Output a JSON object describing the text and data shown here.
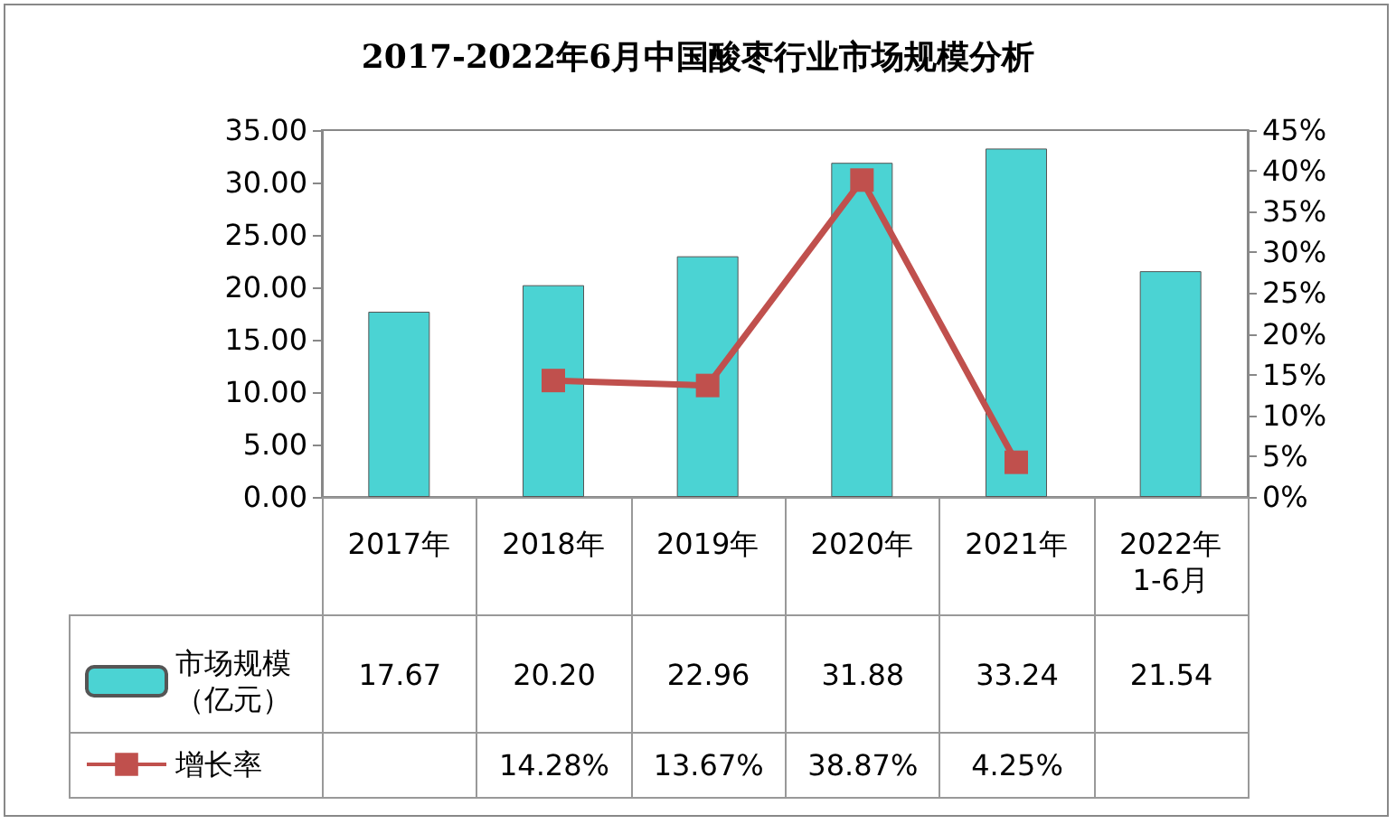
{
  "chart_data": {
    "type": "bar",
    "title": "2017-2022年6月中国酸枣行业市场规模分析",
    "categories": [
      "2017年",
      "2018年",
      "2019年",
      "2020年",
      "2021年",
      "2022年1-6月"
    ],
    "ylim": [
      0,
      35
    ],
    "yticks": [
      {
        "value": 0,
        "label": "0.00"
      },
      {
        "value": 5,
        "label": "5.00"
      },
      {
        "value": 10,
        "label": "10.00"
      },
      {
        "value": 15,
        "label": "15.00"
      },
      {
        "value": 20,
        "label": "20.00"
      },
      {
        "value": 25,
        "label": "25.00"
      },
      {
        "value": 30,
        "label": "30.00"
      },
      {
        "value": 35,
        "label": "35.00"
      }
    ],
    "y2lim": [
      0,
      45
    ],
    "y2ticks": [
      {
        "value": 0,
        "label": "0%"
      },
      {
        "value": 5,
        "label": "5%"
      },
      {
        "value": 10,
        "label": "10%"
      },
      {
        "value": 15,
        "label": "15%"
      },
      {
        "value": 20,
        "label": "20%"
      },
      {
        "value": 25,
        "label": "25%"
      },
      {
        "value": 30,
        "label": "30%"
      },
      {
        "value": 35,
        "label": "35%"
      },
      {
        "value": 40,
        "label": "40%"
      },
      {
        "value": 45,
        "label": "45%"
      }
    ],
    "series": [
      {
        "name": "市场规模（亿元）",
        "color": "#4bd3d3",
        "values": [
          17.67,
          20.2,
          22.96,
          31.88,
          33.24,
          21.54
        ],
        "value_labels": [
          "17.67",
          "20.20",
          "22.96",
          "31.88",
          "33.24",
          "21.54"
        ]
      },
      {
        "name": "增长率",
        "type": "line",
        "axis": "y2",
        "color": "#c0504d",
        "marker": "square",
        "line_style": "solid",
        "values": [
          null,
          14.28,
          13.67,
          38.87,
          4.25,
          null
        ],
        "value_labels": [
          null,
          "14.28%",
          "13.67%",
          "38.87%",
          "4.25%",
          null
        ]
      }
    ],
    "legend": "bottom left",
    "grid": false
  }
}
